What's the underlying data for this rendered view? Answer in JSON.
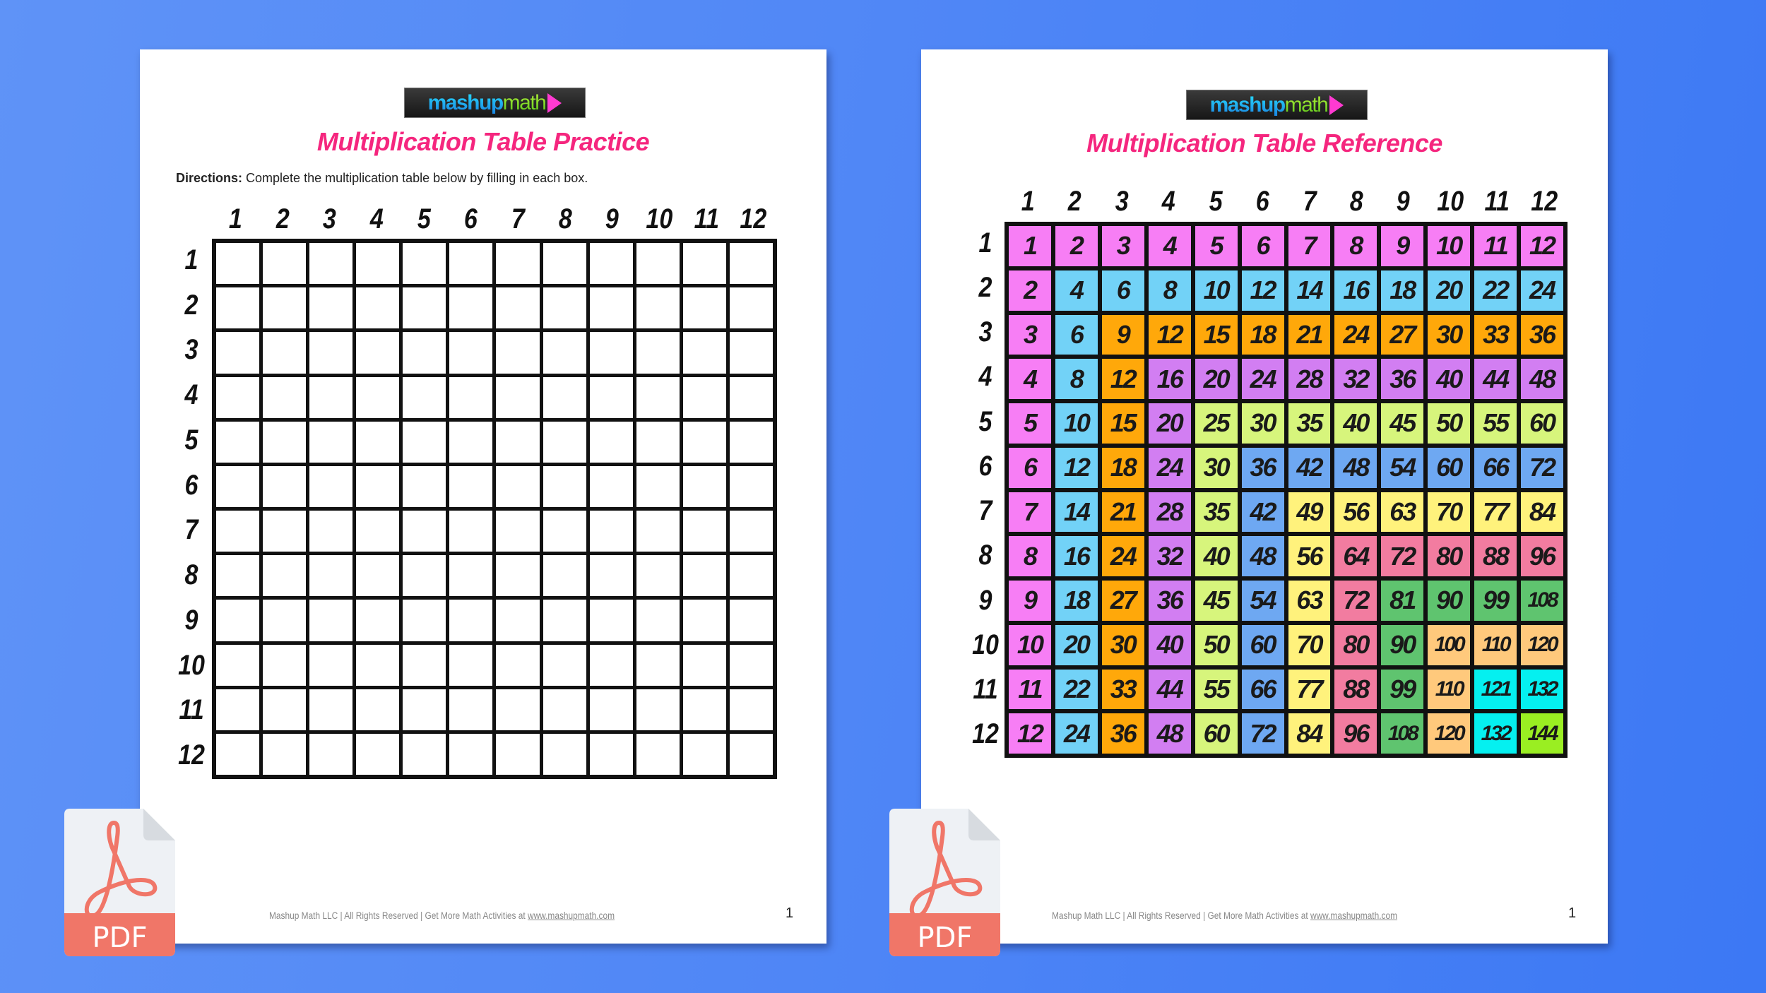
{
  "logo_text": {
    "part1": "mashup",
    "part2": "math"
  },
  "practice": {
    "title": "Multiplication Table Practice",
    "directions_label": "Directions:",
    "directions_text": " Complete the multiplication table below by filling in each box.",
    "column_headers": [
      "1",
      "2",
      "3",
      "4",
      "5",
      "6",
      "7",
      "8",
      "9",
      "10",
      "11",
      "12"
    ],
    "row_headers": [
      "1",
      "2",
      "3",
      "4",
      "5",
      "6",
      "7",
      "8",
      "9",
      "10",
      "11",
      "12"
    ],
    "footer_text": "Mashup Math LLC | All Rights Reserved | Get More Math Activities at ",
    "footer_link": "www.mashupmath.com",
    "page_number": "1"
  },
  "reference": {
    "title": "Multiplication Table Reference",
    "column_headers": [
      "1",
      "2",
      "3",
      "4",
      "5",
      "6",
      "7",
      "8",
      "9",
      "10",
      "11",
      "12"
    ],
    "row_headers": [
      "1",
      "2",
      "3",
      "4",
      "5",
      "6",
      "7",
      "8",
      "9",
      "10",
      "11",
      "12"
    ],
    "rows": [
      [
        1,
        2,
        3,
        4,
        5,
        6,
        7,
        8,
        9,
        10,
        11,
        12
      ],
      [
        2,
        4,
        6,
        8,
        10,
        12,
        14,
        16,
        18,
        20,
        22,
        24
      ],
      [
        3,
        6,
        9,
        12,
        15,
        18,
        21,
        24,
        27,
        30,
        33,
        36
      ],
      [
        4,
        8,
        12,
        16,
        20,
        24,
        28,
        32,
        36,
        40,
        44,
        48
      ],
      [
        5,
        10,
        15,
        20,
        25,
        30,
        35,
        40,
        45,
        50,
        55,
        60
      ],
      [
        6,
        12,
        18,
        24,
        30,
        36,
        42,
        48,
        54,
        60,
        66,
        72
      ],
      [
        7,
        14,
        21,
        28,
        35,
        42,
        49,
        56,
        63,
        70,
        77,
        84
      ],
      [
        8,
        16,
        24,
        32,
        40,
        48,
        56,
        64,
        72,
        80,
        88,
        96
      ],
      [
        9,
        18,
        27,
        36,
        45,
        54,
        63,
        72,
        81,
        90,
        99,
        108
      ],
      [
        10,
        20,
        30,
        40,
        50,
        60,
        70,
        80,
        90,
        100,
        110,
        120
      ],
      [
        11,
        22,
        33,
        44,
        55,
        66,
        77,
        88,
        99,
        110,
        121,
        132
      ],
      [
        12,
        24,
        36,
        48,
        60,
        72,
        84,
        96,
        108,
        120,
        132,
        144
      ]
    ],
    "band_colors": [
      "#f77ef5",
      "#72d2f7",
      "#ffa80a",
      "#d27ef2",
      "#d7f57c",
      "#6ea8f2",
      "#fff27c",
      "#f27ca0",
      "#5fc46f",
      "#ffc97c",
      "#05f0f0",
      "#9aee22"
    ],
    "footer_text": "Mashup Math LLC | All Rights Reserved | Get More Math Activities at ",
    "footer_link": "www.mashupmath.com",
    "page_number": "1"
  },
  "pdf_badge": {
    "label": "PDF",
    "icon": "adobe-pdf-file-icon",
    "color": "#f07668"
  }
}
